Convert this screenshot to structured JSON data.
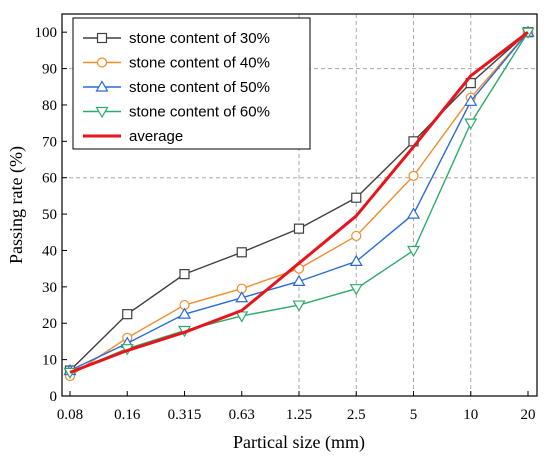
{
  "chart_data": {
    "type": "line",
    "title": "",
    "xlabel": "Partical size (mm)",
    "ylabel": "Passing rate (%)",
    "categories": [
      "0.08",
      "0.16",
      "0.315",
      "0.63",
      "1.25",
      "2.5",
      "5",
      "10",
      "20"
    ],
    "ylim": [
      0,
      105
    ],
    "yticks": [
      "0",
      "10",
      "20",
      "30",
      "40",
      "50",
      "60",
      "70",
      "80",
      "90",
      "100"
    ],
    "grid": "dashed vertical/horizontal gridlines",
    "legend_position": "top-left",
    "series": [
      {
        "name": "stone content of 30%",
        "color": "#404040",
        "marker": "square",
        "values": [
          7,
          22.5,
          33.5,
          39.5,
          46,
          54.5,
          70,
          86,
          100
        ]
      },
      {
        "name": "stone content of 40%",
        "color": "#f08c2c",
        "marker": "circle",
        "values": [
          5.5,
          16,
          25,
          29.5,
          35,
          44,
          60.5,
          82,
          100
        ]
      },
      {
        "name": "stone content of 50%",
        "color": "#2a6ad8",
        "marker": "triangle-up",
        "values": [
          7,
          14.5,
          22.5,
          27,
          31.5,
          37,
          50,
          81,
          100
        ]
      },
      {
        "name": "stone content of 60%",
        "color": "#2eaa6a",
        "marker": "triangle-down",
        "values": [
          6.5,
          13,
          18,
          22,
          25,
          29.5,
          40,
          75,
          100
        ]
      },
      {
        "name": "average",
        "color": "#e8141c",
        "marker": "none",
        "values": [
          6.5,
          12.5,
          17.5,
          23.5,
          36.5,
          49.5,
          68.5,
          88,
          100
        ]
      }
    ]
  }
}
